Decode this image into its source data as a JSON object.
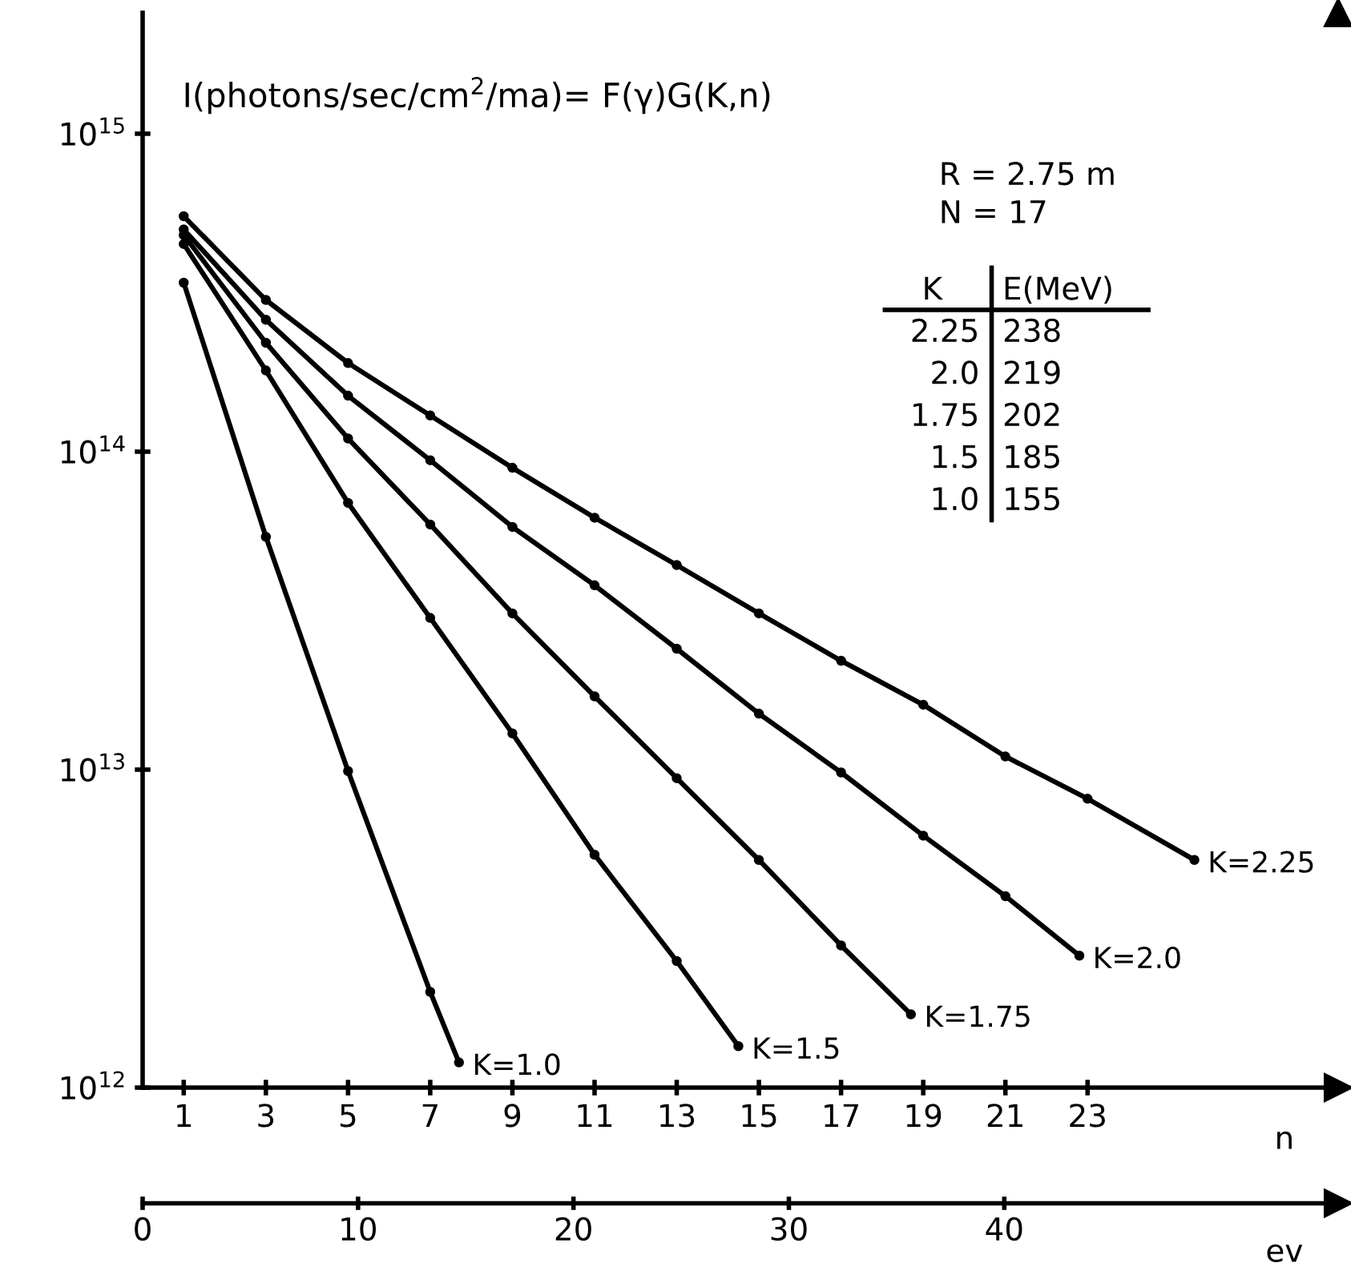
{
  "chart_data": {
    "type": "line",
    "title": "I(photons/sec/cm$^{2}$/ma)= F(γ)G(K,n)",
    "xlabel": "n",
    "x2label": "ev",
    "log": "y",
    "xlim": [
      0,
      29.1
    ],
    "xticks": [
      1,
      3,
      5,
      7,
      9,
      11,
      13,
      15,
      17,
      19,
      21,
      23
    ],
    "x2lim": [
      0,
      55.5
    ],
    "x2ticks": [
      0,
      10,
      20,
      30,
      40
    ],
    "ylim": [
      1000000000000.0,
      2400000000000000.0
    ],
    "yticks": [
      {
        "value": 1000000000000.0,
        "label": "10$^{12}$"
      },
      {
        "value": 10000000000000.0,
        "label": "10$^{13}$"
      },
      {
        "value": 100000000000000.0,
        "label": "10$^{14}$"
      },
      {
        "value": 1000000000000000.0,
        "label": "10$^{15}$"
      }
    ],
    "grid": false,
    "legend": false,
    "marker": "circle",
    "line_style": "solid",
    "series": [
      {
        "name": "K=2.25",
        "color": "#000000",
        "x": [
          1,
          3,
          5,
          7,
          9,
          11,
          13,
          15,
          17,
          19,
          21,
          23,
          25.6
        ],
        "values": [
          550000000000000.0,
          300000000000000.0,
          190000000000000.0,
          130000000000000.0,
          89000000000000.0,
          62000000000000.0,
          44000000000000.0,
          31000000000000.0,
          22000000000000.0,
          16000000000000.0,
          11000000000000.0,
          8100000000000.0,
          5200000000000.0
        ]
      },
      {
        "name": "K=2.0",
        "color": "#000000",
        "x": [
          1,
          3,
          5,
          7,
          9,
          11,
          13,
          15,
          17,
          19,
          21,
          22.8
        ],
        "values": [
          500000000000000.0,
          260000000000000.0,
          150000000000000.0,
          94000000000000.0,
          58000000000000.0,
          38000000000000.0,
          24000000000000.0,
          15000000000000.0,
          9800000000000.0,
          6200000000000.0,
          4000000000000.0,
          2600000000000.0
        ]
      },
      {
        "name": "K=1.75",
        "color": "#000000",
        "x": [
          1,
          3,
          5,
          7,
          9,
          11,
          13,
          15,
          17,
          18.7
        ],
        "values": [
          480000000000000.0,
          220000000000000.0,
          110000000000000.0,
          59000000000000.0,
          31000000000000.0,
          17000000000000.0,
          9400000000000.0,
          5200000000000.0,
          2800000000000.0,
          1700000000000.0
        ]
      },
      {
        "name": "K=1.5",
        "color": "#000000",
        "x": [
          1,
          3,
          5,
          7,
          9,
          11,
          13,
          14.5
        ],
        "values": [
          450000000000000.0,
          180000000000000.0,
          69000000000000.0,
          30000000000000.0,
          13000000000000.0,
          5400000000000.0,
          2500000000000.0,
          1350000000000.0
        ]
      },
      {
        "name": "K=1.0",
        "color": "#000000",
        "x": [
          1,
          3,
          5,
          7,
          7.7
        ],
        "values": [
          340000000000000.0,
          54000000000000.0,
          9900000000000.0,
          2000000000000.0,
          1200000000000.0
        ]
      }
    ],
    "annotations": [
      "R = 2.75 m",
      "N = 17",
      "K",
      "E(MeV)",
      "2.25",
      "238",
      "2.0",
      "219",
      "1.75",
      "202",
      "1.5",
      "185",
      "1.0",
      "155"
    ]
  }
}
